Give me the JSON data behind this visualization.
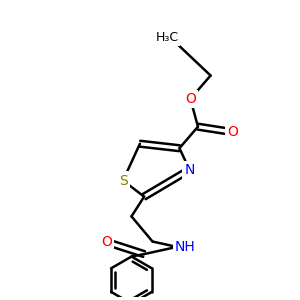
{
  "background_color": "#ffffff",
  "bond_color": "#000000",
  "bond_width": 1.8,
  "atom_colors": {
    "N": "#0000ff",
    "O": "#ff0000",
    "S": "#808000",
    "C": "#000000",
    "H": "#000000"
  },
  "font_size": 10,
  "fig_size": [
    3.0,
    3.0
  ],
  "dpi": 100
}
